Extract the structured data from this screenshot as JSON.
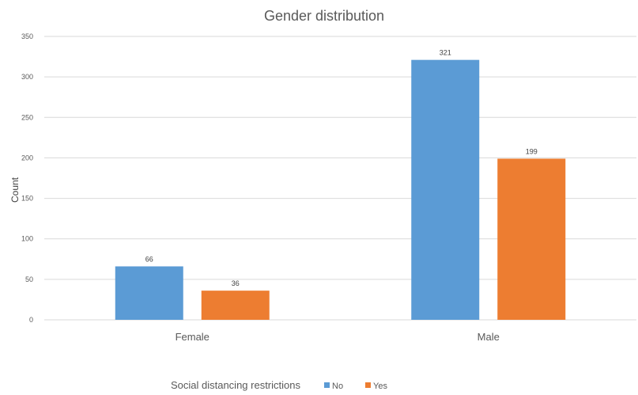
{
  "chart_data": {
    "type": "bar",
    "title": "Gender distribution",
    "xlabel": "",
    "ylabel": "Count",
    "categories": [
      "Female",
      "Male"
    ],
    "series": [
      {
        "name": "No",
        "values": [
          66,
          321
        ],
        "color": "#5b9bd5"
      },
      {
        "name": "Yes",
        "values": [
          36,
          199
        ],
        "color": "#ed7d31"
      }
    ],
    "ylim": [
      0,
      350
    ],
    "yticks": [
      0,
      50,
      100,
      150,
      200,
      250,
      300,
      350
    ],
    "grid": true,
    "data_labels": true,
    "legend": {
      "title": "Social distancing restrictions",
      "position": "bottom"
    }
  }
}
